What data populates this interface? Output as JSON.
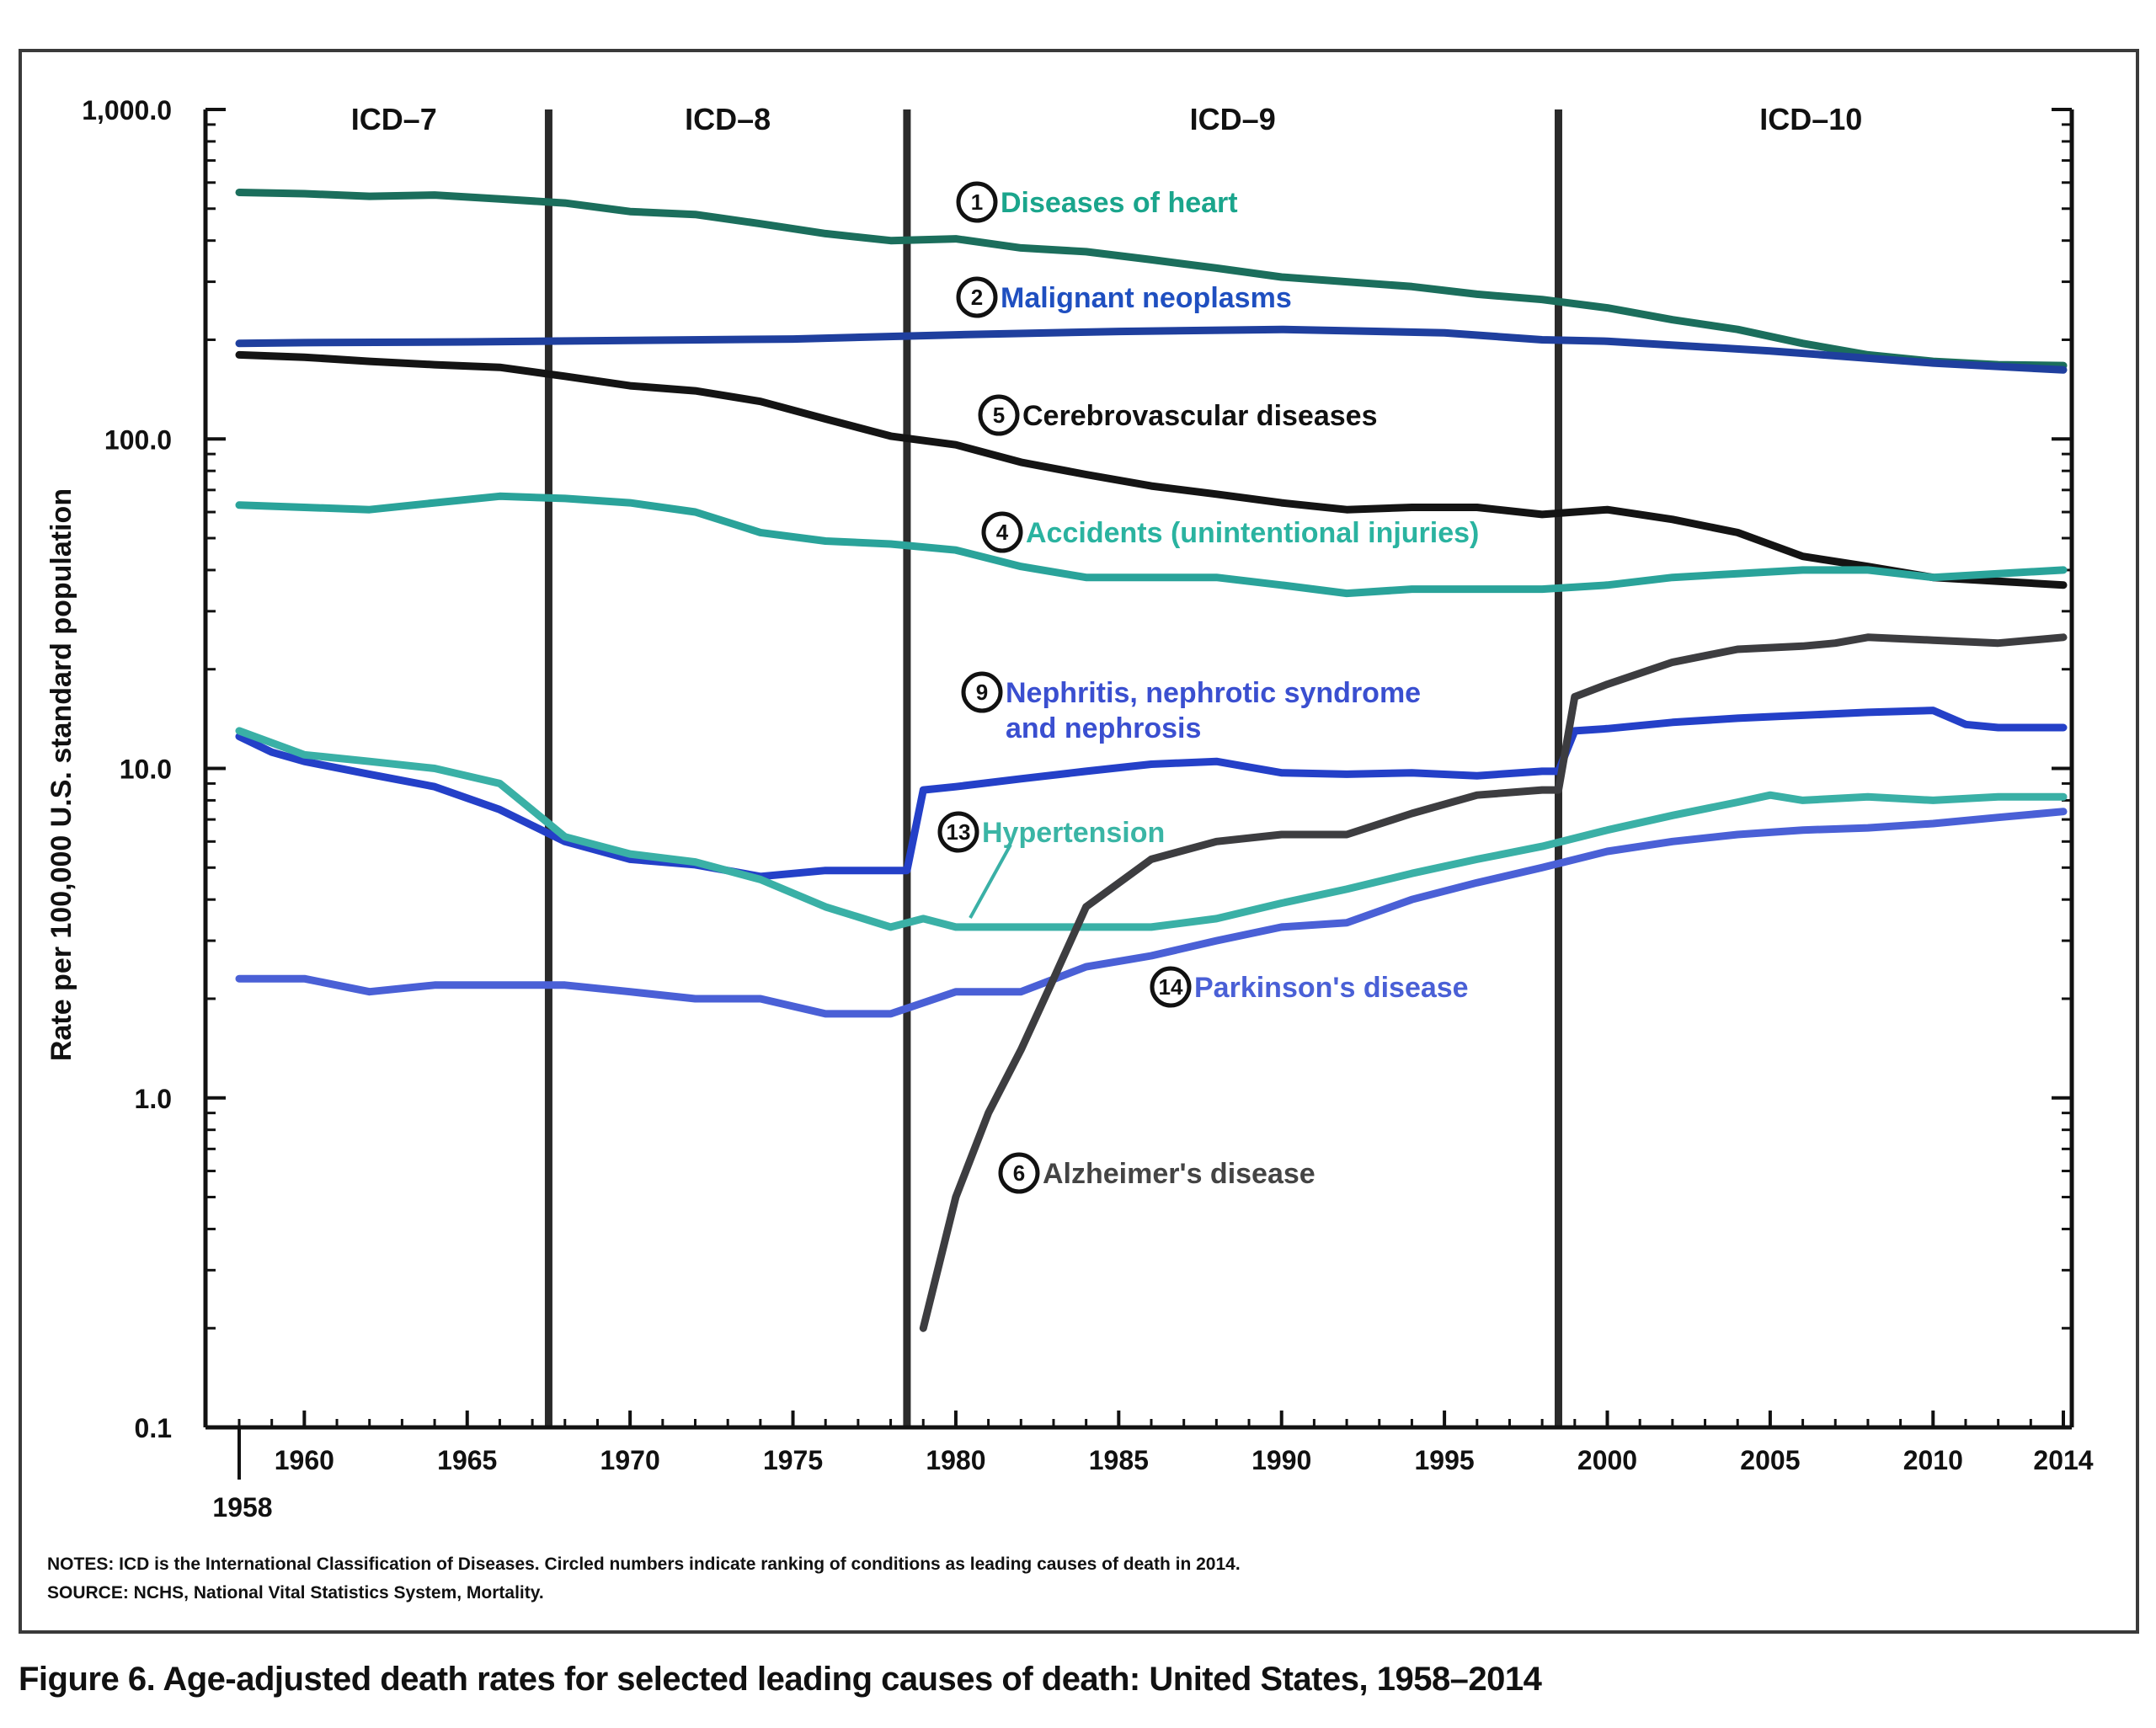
{
  "chart_data": {
    "type": "line",
    "title": "Figure 6. Age-adjusted death rates for selected leading causes of death: United States, 1958–2014",
    "xlabel": "",
    "ylabel": "Rate per 100,000 U.S. standard population",
    "yscale": "log",
    "ylim": [
      0.1,
      1000
    ],
    "xlim": [
      1958,
      2014
    ],
    "y_ticks": [
      {
        "value": 1000,
        "label": "1,000.0"
      },
      {
        "value": 100,
        "label": "100.0"
      },
      {
        "value": 10,
        "label": "10.0"
      },
      {
        "value": 1,
        "label": "1.0"
      },
      {
        "value": 0.1,
        "label": "0.1"
      }
    ],
    "x_ticks": [
      {
        "value": 1960,
        "label": "1960"
      },
      {
        "value": 1965,
        "label": "1965"
      },
      {
        "value": 1970,
        "label": "1970"
      },
      {
        "value": 1975,
        "label": "1975"
      },
      {
        "value": 1980,
        "label": "1980"
      },
      {
        "value": 1985,
        "label": "1985"
      },
      {
        "value": 1990,
        "label": "1990"
      },
      {
        "value": 1995,
        "label": "1995"
      },
      {
        "value": 2000,
        "label": "2000"
      },
      {
        "value": 2005,
        "label": "2005"
      },
      {
        "value": 2010,
        "label": "2010"
      },
      {
        "value": 2014,
        "label": "2014"
      }
    ],
    "start_year_label": "1958",
    "icd_periods": [
      {
        "label": "ICD–7",
        "start": 1958,
        "end": 1967.5
      },
      {
        "label": "ICD–8",
        "start": 1967.5,
        "end": 1978.5
      },
      {
        "label": "ICD–9",
        "start": 1978.5,
        "end": 1998.5
      },
      {
        "label": "ICD–10",
        "start": 1998.5,
        "end": 2014
      }
    ],
    "icd_boundaries": [
      1967.5,
      1978.5,
      1998.5
    ],
    "series": [
      {
        "name": "Diseases of heart",
        "rank": "1",
        "color": "#1b6e5c",
        "label_color": "#1aa58c",
        "x": [
          1958,
          1960,
          1962,
          1964,
          1966,
          1968,
          1970,
          1972,
          1974,
          1976,
          1978,
          1980,
          1982,
          1984,
          1986,
          1988,
          1990,
          1992,
          1994,
          1996,
          1998,
          2000,
          2002,
          2004,
          2006,
          2008,
          2010,
          2012,
          2014
        ],
        "y": [
          560,
          555,
          545,
          550,
          535,
          520,
          490,
          480,
          450,
          420,
          400,
          405,
          380,
          370,
          350,
          330,
          310,
          300,
          290,
          275,
          265,
          250,
          230,
          215,
          195,
          180,
          172,
          168,
          167
        ]
      },
      {
        "name": "Malignant neoplasms",
        "rank": "2",
        "color": "#1f3f9e",
        "label_color": "#1f4fc0",
        "x": [
          1958,
          1960,
          1965,
          1970,
          1975,
          1980,
          1985,
          1990,
          1995,
          1998,
          2000,
          2005,
          2010,
          2014
        ],
        "y": [
          195,
          196,
          197,
          199,
          201,
          207,
          212,
          215,
          210,
          200,
          198,
          185,
          170,
          162
        ]
      },
      {
        "name": "Cerebrovascular diseases",
        "rank": "5",
        "color": "#141414",
        "label_color": "#111111",
        "x": [
          1958,
          1960,
          1962,
          1964,
          1966,
          1968,
          1970,
          1972,
          1974,
          1976,
          1978,
          1980,
          1982,
          1984,
          1986,
          1988,
          1990,
          1992,
          1994,
          1996,
          1998,
          2000,
          2002,
          2004,
          2006,
          2008,
          2010,
          2012,
          2014
        ],
        "y": [
          180,
          177,
          172,
          168,
          165,
          155,
          145,
          140,
          130,
          115,
          102,
          96,
          85,
          78,
          72,
          68,
          64,
          61,
          62,
          62,
          59,
          61,
          57,
          52,
          44,
          41,
          38,
          37,
          36
        ]
      },
      {
        "name": "Accidents (unintentional injuries)",
        "rank": "4",
        "color": "#2aa39a",
        "label_color": "#2ab3a0",
        "x": [
          1958,
          1960,
          1962,
          1964,
          1966,
          1968,
          1970,
          1972,
          1974,
          1976,
          1978,
          1980,
          1982,
          1984,
          1986,
          1988,
          1990,
          1992,
          1994,
          1996,
          1998,
          2000,
          2002,
          2004,
          2006,
          2008,
          2010,
          2012,
          2014
        ],
        "y": [
          63,
          62,
          61,
          64,
          67,
          66,
          64,
          60,
          52,
          49,
          48,
          46,
          41,
          38,
          38,
          38,
          36,
          34,
          35,
          35,
          35,
          36,
          38,
          39,
          40,
          40,
          38,
          39,
          40
        ]
      },
      {
        "name": "Nephritis, nephrotic syndrome",
        "name_line2": "and nephrosis",
        "rank": "9",
        "color": "#2440c8",
        "label_color": "#3a4fd0",
        "x": [
          1958,
          1959,
          1960,
          1962,
          1964,
          1966,
          1968,
          1970,
          1972,
          1974,
          1976,
          1978,
          1978.5,
          1979,
          1980,
          1982,
          1984,
          1986,
          1988,
          1990,
          1992,
          1994,
          1996,
          1998,
          1998.5,
          1999,
          2000,
          2002,
          2004,
          2006,
          2008,
          2010,
          2011,
          2012,
          2014
        ],
        "y": [
          12.5,
          11.2,
          10.5,
          9.6,
          8.8,
          7.5,
          6.0,
          5.3,
          5.1,
          4.7,
          4.9,
          4.9,
          4.9,
          8.6,
          8.8,
          9.3,
          9.8,
          10.3,
          10.5,
          9.7,
          9.6,
          9.7,
          9.5,
          9.8,
          9.8,
          13.0,
          13.2,
          13.8,
          14.2,
          14.5,
          14.8,
          15.0,
          13.6,
          13.3,
          13.3
        ]
      },
      {
        "name": "Hypertension",
        "rank": "13",
        "color": "#3ab0a6",
        "label_color": "#3ab5a5",
        "x": [
          1958,
          1960,
          1962,
          1964,
          1966,
          1968,
          1970,
          1972,
          1974,
          1976,
          1978,
          1979,
          1980,
          1982,
          1984,
          1986,
          1988,
          1990,
          1992,
          1994,
          1996,
          1998,
          2000,
          2002,
          2004,
          2005,
          2006,
          2008,
          2010,
          2012,
          2014
        ],
        "y": [
          13.0,
          11.0,
          10.5,
          10.0,
          9.0,
          6.2,
          5.5,
          5.2,
          4.6,
          3.8,
          3.3,
          3.5,
          3.3,
          3.3,
          3.3,
          3.3,
          3.5,
          3.9,
          4.3,
          4.8,
          5.3,
          5.8,
          6.5,
          7.2,
          7.9,
          8.3,
          8.0,
          8.2,
          8.0,
          8.2,
          8.2
        ]
      },
      {
        "name": "Parkinson's disease",
        "rank": "14",
        "color": "#4a60d6",
        "label_color": "#4a60d6",
        "x": [
          1958,
          1960,
          1962,
          1964,
          1966,
          1968,
          1970,
          1972,
          1974,
          1976,
          1978,
          1980,
          1982,
          1984,
          1986,
          1988,
          1990,
          1992,
          1994,
          1996,
          1998,
          2000,
          2002,
          2004,
          2006,
          2008,
          2010,
          2012,
          2014
        ],
        "y": [
          2.3,
          2.3,
          2.1,
          2.2,
          2.2,
          2.2,
          2.1,
          2.0,
          2.0,
          1.8,
          1.8,
          2.1,
          2.1,
          2.5,
          2.7,
          3.0,
          3.3,
          3.4,
          4.0,
          4.5,
          5.0,
          5.6,
          6.0,
          6.3,
          6.5,
          6.6,
          6.8,
          7.1,
          7.4
        ]
      },
      {
        "name": "Alzheimer's disease",
        "rank": "6",
        "color": "#3d3d40",
        "label_color": "#444444",
        "x": [
          1979,
          1980,
          1981,
          1982,
          1983,
          1984,
          1986,
          1988,
          1990,
          1992,
          1994,
          1996,
          1998,
          1998.5,
          1999,
          2000,
          2002,
          2004,
          2006,
          2007,
          2008,
          2010,
          2012,
          2014
        ],
        "y": [
          0.2,
          0.5,
          0.9,
          1.4,
          2.3,
          3.8,
          5.3,
          6.0,
          6.3,
          6.3,
          7.3,
          8.3,
          8.6,
          8.6,
          16.5,
          18.0,
          21.0,
          23.0,
          23.5,
          24.0,
          25.0,
          24.5,
          24.0,
          25.0
        ]
      }
    ]
  },
  "notes": {
    "line1": "NOTES: ICD is the International Classification of Diseases. Circled numbers indicate ranking of conditions as leading causes of death in 2014.",
    "line2": "SOURCE: NCHS, National Vital Statistics System, Mortality."
  },
  "caption": "Figure 6. Age-adjusted death rates for selected leading causes of death: United States, 1958–2014"
}
